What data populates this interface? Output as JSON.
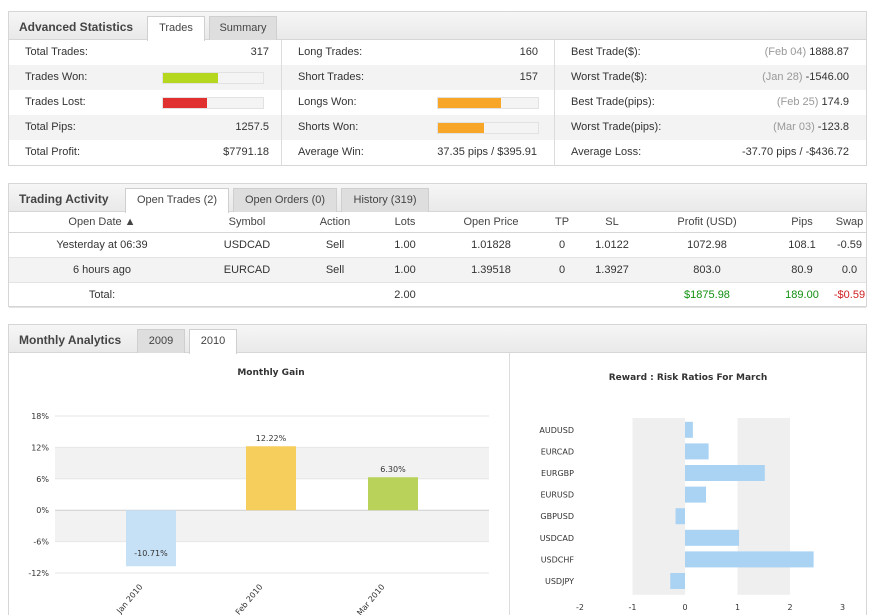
{
  "advanced_statistics": {
    "title": "Advanced Statistics",
    "tabs": [
      "Trades",
      "Summary"
    ],
    "active_tab": "Trades",
    "left": {
      "total_trades_label": "Total Trades:",
      "total_trades_value": "317",
      "trades_won_label": "Trades Won:",
      "trades_won_bar": 0.55,
      "trades_won_color": "#b5d71e",
      "trades_lost_label": "Trades Lost:",
      "trades_lost_bar": 0.44,
      "trades_lost_color": "#e03030",
      "total_pips_label": "Total Pips:",
      "total_pips_value": "1257.5",
      "total_profit_label": "Total Profit:",
      "total_profit_value": "$7791.18"
    },
    "middle": {
      "long_trades_label": "Long Trades:",
      "long_trades_value": "160",
      "short_trades_label": "Short Trades:",
      "short_trades_value": "157",
      "longs_won_label": "Longs Won:",
      "longs_won_bar": 0.63,
      "shorts_won_label": "Shorts Won:",
      "shorts_won_bar": 0.46,
      "bar_color": "#f8a628",
      "average_win_label": "Average Win:",
      "average_win_value": "37.35 pips / $395.91"
    },
    "right": {
      "best_trade_usd_label": "Best Trade($):",
      "best_trade_usd_date": "(Feb 04)",
      "best_trade_usd_value": "1888.87",
      "worst_trade_usd_label": "Worst Trade($):",
      "worst_trade_usd_date": "(Jan 28)",
      "worst_trade_usd_value": "-1546.00",
      "best_trade_pips_label": "Best Trade(pips):",
      "best_trade_pips_date": "(Feb 25)",
      "best_trade_pips_value": "174.9",
      "worst_trade_pips_label": "Worst Trade(pips):",
      "worst_trade_pips_date": "(Mar 03)",
      "worst_trade_pips_value": "-123.8",
      "average_loss_label": "Average Loss:",
      "average_loss_value": "-37.70 pips / -$436.72"
    }
  },
  "trading_activity": {
    "title": "Trading Activity",
    "tabs": [
      "Open Trades (2)",
      "Open Orders (0)",
      "History (319)"
    ],
    "active_tab": "Open Trades (2)",
    "columns": [
      "Open Date ▲",
      "Symbol",
      "Action",
      "Lots",
      "Open Price",
      "TP",
      "SL",
      "Profit (USD)",
      "Pips",
      "Swap"
    ],
    "rows": [
      [
        "Yesterday at 06:39",
        "USDCAD",
        "Sell",
        "1.00",
        "1.01828",
        "0",
        "1.0122",
        "1072.98",
        "108.1",
        "-0.59"
      ],
      [
        "6 hours ago",
        "EURCAD",
        "Sell",
        "1.00",
        "1.39518",
        "0",
        "1.3927",
        "803.0",
        "80.9",
        "0.0"
      ]
    ],
    "total": {
      "label": "Total:",
      "lots": "2.00",
      "profit": "$1875.98",
      "pips": "189.00",
      "swap": "-$0.59"
    }
  },
  "monthly_analytics": {
    "title": "Monthly Analytics",
    "tabs": [
      "2009",
      "2010"
    ],
    "active_tab": "2010"
  },
  "chart_data": [
    {
      "type": "bar",
      "title": "Monthly Gain",
      "categories": [
        "Jan 2010",
        "Feb 2010",
        "Mar 2010"
      ],
      "values": [
        -10.71,
        12.22,
        6.3
      ],
      "value_labels": [
        "-10.71%",
        "12.22%",
        "6.30%"
      ],
      "colors": [
        "#c6e0f5",
        "#f5ce5c",
        "#b8d25a"
      ],
      "y_ticks": [
        "18%",
        "12%",
        "6%",
        "0%",
        "-6%",
        "-12%"
      ],
      "ylim": [
        -12,
        18
      ],
      "grid": true,
      "xlabel": "",
      "ylabel": ""
    },
    {
      "type": "bar",
      "orientation": "horizontal",
      "title": "Reward : Risk Ratios For March",
      "categories": [
        "AUDUSD",
        "EURCAD",
        "EURGBP",
        "EURUSD",
        "GBPUSD",
        "USDCAD",
        "USDCHF",
        "USDJPY"
      ],
      "values": [
        0.15,
        0.45,
        1.52,
        0.4,
        -0.18,
        1.03,
        2.45,
        -0.28
      ],
      "color": "#a9d2f3",
      "x_ticks": [
        "-2",
        "-1",
        "0",
        "1",
        "2",
        "3"
      ],
      "xlim": [
        -2,
        3
      ],
      "xlabel": "",
      "ylabel": ""
    }
  ]
}
